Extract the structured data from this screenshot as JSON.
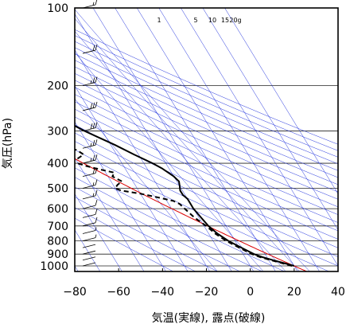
{
  "chart_data": {
    "type": "skew-t",
    "xlabel": "気温(実線), 露点(破線)",
    "ylabel": "気圧(hPa)",
    "x_ticks": [
      -80,
      -60,
      -40,
      -20,
      0,
      20,
      40
    ],
    "y_ticks": [
      100,
      200,
      300,
      400,
      500,
      600,
      700,
      800,
      900,
      1000
    ],
    "xlim": [
      -80,
      40
    ],
    "ylim_hPa": [
      1050,
      100
    ],
    "y_scale": "log",
    "mixing_ratio_labels": [
      "1",
      "5",
      "10",
      "15",
      "20g"
    ],
    "colors": {
      "temperature": "#000000",
      "dewpoint": "#000000",
      "dry_adiabat": "#dd0000",
      "guides": "#2233dd"
    },
    "series": [
      {
        "name": "気温",
        "points": [
          [
            1000,
            20
          ],
          [
            975,
            16
          ],
          [
            950,
            12
          ],
          [
            925,
            8
          ],
          [
            900,
            5
          ],
          [
            850,
            1
          ],
          [
            800,
            -3
          ],
          [
            750,
            -6
          ],
          [
            700,
            -8
          ],
          [
            650,
            -9
          ],
          [
            600,
            -10
          ],
          [
            575,
            -10
          ],
          [
            550,
            -10
          ],
          [
            530,
            -11
          ],
          [
            510,
            -11
          ],
          [
            490,
            -10
          ],
          [
            470,
            -9
          ],
          [
            450,
            -10
          ],
          [
            420,
            -13
          ],
          [
            400,
            -16
          ],
          [
            370,
            -22
          ],
          [
            340,
            -28
          ],
          [
            300,
            -38
          ],
          [
            270,
            -45
          ],
          [
            240,
            -53
          ],
          [
            200,
            -62
          ],
          [
            180,
            -68
          ],
          [
            160,
            -72
          ],
          [
            140,
            -74
          ],
          [
            120,
            -74
          ],
          [
            105,
            -75
          ],
          [
            100,
            -76
          ]
        ]
      },
      {
        "name": "露点",
        "points": [
          [
            1000,
            19
          ],
          [
            975,
            15
          ],
          [
            950,
            11
          ],
          [
            925,
            7
          ],
          [
            900,
            4
          ],
          [
            850,
            0
          ],
          [
            800,
            -4
          ],
          [
            750,
            -7
          ],
          [
            700,
            -9
          ],
          [
            650,
            -12
          ],
          [
            600,
            -14
          ],
          [
            575,
            -15
          ],
          [
            560,
            -17
          ],
          [
            540,
            -24
          ],
          [
            525,
            -30
          ],
          [
            510,
            -38
          ],
          [
            500,
            -40
          ],
          [
            485,
            -38
          ],
          [
            470,
            -35
          ],
          [
            450,
            -38
          ],
          [
            435,
            -36
          ],
          [
            420,
            -43
          ],
          [
            410,
            -47
          ],
          [
            395,
            -52
          ],
          [
            370,
            -45
          ],
          [
            355,
            -47
          ],
          [
            340,
            -56
          ],
          [
            320,
            -56
          ],
          [
            300,
            -60
          ],
          [
            280,
            -65
          ],
          [
            265,
            -70
          ],
          [
            250,
            -77
          ],
          [
            240,
            -80
          ]
        ]
      }
    ],
    "wind_barbs": [
      [
        1000,
        0
      ],
      [
        950,
        0
      ],
      [
        900,
        0
      ],
      [
        850,
        0
      ],
      [
        800,
        5
      ],
      [
        750,
        5
      ],
      [
        700,
        10
      ],
      [
        650,
        10
      ],
      [
        600,
        10
      ],
      [
        550,
        15
      ],
      [
        500,
        15
      ],
      [
        450,
        20
      ],
      [
        400,
        25
      ],
      [
        350,
        25
      ],
      [
        300,
        30
      ],
      [
        250,
        30
      ],
      [
        200,
        25
      ],
      [
        150,
        20
      ],
      [
        100,
        15
      ]
    ]
  }
}
